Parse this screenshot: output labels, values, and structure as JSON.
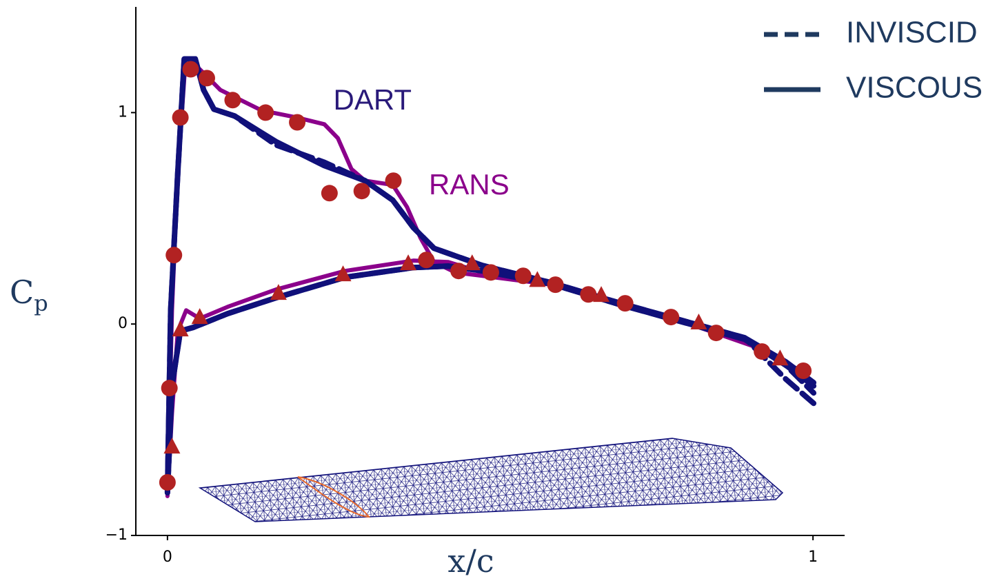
{
  "chart_data": {
    "type": "line",
    "xlabel": "x/c",
    "ylabel": "C",
    "ylabel_subscript": "p",
    "xlim": [
      -0.049,
      1.049
    ],
    "ylim": [
      -1,
      1.5
    ],
    "xticks": [
      0,
      1
    ],
    "yticks": [
      {
        "value": -1,
        "label": "−1"
      },
      0,
      1
    ],
    "legend": "upper right",
    "annotations": [
      {
        "text": "DART",
        "x": 0.257,
        "y": 1.05,
        "color": "#2a1a7a"
      },
      {
        "text": "RANS",
        "x": 0.405,
        "y": 0.65,
        "color": "#8b008b"
      }
    ],
    "series": [
      {
        "color": "#8b008b",
        "dash": "solid",
        "width": 6,
        "x": [
          0.985,
          0.916,
          0.809,
          0.702,
          0.595,
          0.488,
          0.446,
          0.413,
          0.392,
          0.371,
          0.349,
          0.306,
          0.285,
          0.264,
          0.243,
          0.2,
          0.146,
          0.082,
          0.05,
          0.034,
          0.027,
          0.016,
          0.007,
          0,
          0.007,
          0.016,
          0.029,
          0.05,
          0.093,
          0.168,
          0.275,
          0.381,
          0.435,
          0.488
        ],
        "y": [
          -0.228,
          -0.114,
          0,
          0.098,
          0.186,
          0.228,
          0.244,
          0.293,
          0.407,
          0.554,
          0.658,
          0.678,
          0.733,
          0.879,
          0.945,
          0.977,
          1.01,
          1.107,
          1.205,
          1.238,
          1.205,
          0.717,
          0.065,
          -0.814,
          -0.423,
          -0.033,
          0.065,
          0.026,
          0.081,
          0.163,
          0.251,
          0.3,
          0.293,
          0.244
        ]
      },
      {
        "name": "INVISCID",
        "color": "#10107a",
        "dash": "dashed",
        "width": 8,
        "x": [
          1.001,
          0.958,
          0.894,
          0.809,
          0.702,
          0.595,
          0.488,
          0.413,
          0.381,
          0.349,
          0.306,
          0.243,
          0.168,
          0.104,
          0.072,
          0.056,
          0.043,
          0.026,
          0.016,
          0.005,
          0,
          0.007,
          0.02,
          0.04,
          0.093,
          0.168,
          0.275,
          0.381,
          0.435,
          0.488,
          0.595,
          0.702,
          0.809,
          0.894,
          0.958,
          1.001
        ],
        "y": [
          -0.375,
          -0.261,
          -0.065,
          0.007,
          0.098,
          0.195,
          0.277,
          0.358,
          0.456,
          0.586,
          0.678,
          0.765,
          0.847,
          0.984,
          1.016,
          1.107,
          1.254,
          1.254,
          0.717,
          0.065,
          -0.798,
          -0.293,
          -0.033,
          -0.016,
          0.049,
          0.124,
          0.221,
          0.267,
          0.274,
          0.251,
          0.189,
          0.091,
          0,
          -0.072,
          -0.195,
          -0.326
        ]
      },
      {
        "name": "VISCOUS",
        "color": "#10107a",
        "dash": "solid",
        "width": 8,
        "x": [
          1.001,
          0.958,
          0.894,
          0.809,
          0.702,
          0.595,
          0.488,
          0.413,
          0.381,
          0.349,
          0.306,
          0.243,
          0.168,
          0.104,
          0.072,
          0.056,
          0.043,
          0.026,
          0.016,
          0.005,
          0,
          0.007,
          0.02,
          0.04,
          0.093,
          0.168,
          0.275,
          0.381,
          0.435,
          0.488,
          0.595,
          0.702,
          0.809,
          0.894,
          0.958,
          1.001
        ],
        "y": [
          -0.277,
          -0.179,
          -0.065,
          0.007,
          0.098,
          0.195,
          0.277,
          0.358,
          0.456,
          0.586,
          0.678,
          0.749,
          0.863,
          0.984,
          1.016,
          1.107,
          1.254,
          1.254,
          0.717,
          0.065,
          -0.798,
          -0.293,
          -0.033,
          -0.016,
          0.049,
          0.124,
          0.221,
          0.267,
          0.274,
          0.251,
          0.189,
          0.091,
          0,
          -0.072,
          -0.195,
          -0.293
        ]
      }
    ],
    "markers": [
      {
        "marker": "circle",
        "color": "#b22222",
        "x": [
          0,
          0.003,
          0.01,
          0.02,
          0.036,
          0.061,
          0.101,
          0.152,
          0.201,
          0.251,
          0.301,
          0.35,
          0.401,
          0.451,
          0.501,
          0.551,
          0.601,
          0.652,
          0.709,
          0.78,
          0.85,
          0.921,
          0.985
        ],
        "y": [
          -0.749,
          -0.303,
          0.326,
          0.977,
          1.205,
          1.163,
          1.059,
          1.0,
          0.954,
          0.619,
          0.629,
          0.678,
          0.303,
          0.251,
          0.244,
          0.228,
          0.186,
          0.14,
          0.098,
          0.033,
          -0.042,
          -0.13,
          -0.221
        ]
      },
      {
        "marker": "triangle",
        "color": "#b22222",
        "x": [
          0.007,
          0.02,
          0.05,
          0.172,
          0.272,
          0.373,
          0.472,
          0.573,
          0.672,
          0.823,
          0.949
        ],
        "y": [
          -0.58,
          -0.026,
          0.033,
          0.147,
          0.235,
          0.287,
          0.287,
          0.208,
          0.137,
          0.007,
          -0.163
        ]
      }
    ]
  }
}
